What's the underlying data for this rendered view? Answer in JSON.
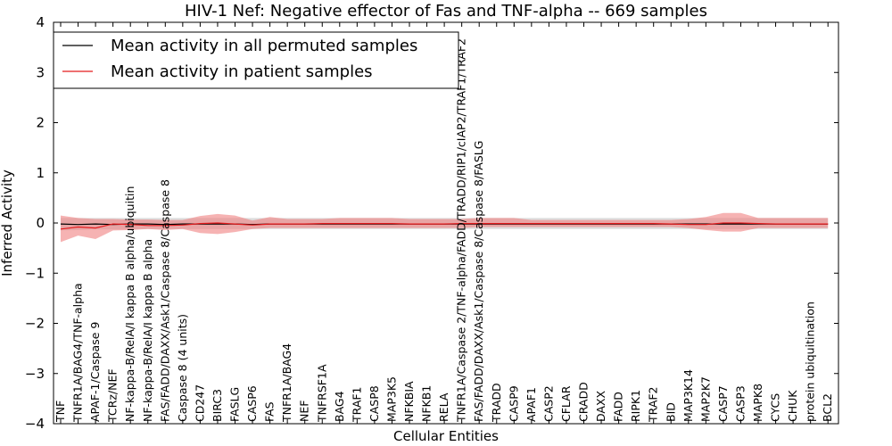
{
  "chart_data": {
    "type": "line",
    "title": "HIV-1 Nef: Negative effector of Fas and TNF-alpha -- 669 samples",
    "xlabel": "Cellular Entities",
    "ylabel": "Inferred Activity",
    "ylim": [
      -4,
      4
    ],
    "yticks": [
      -4,
      -3,
      -2,
      -1,
      0,
      1,
      2,
      3,
      4
    ],
    "ytick_labels": [
      "−4",
      "−3",
      "−2",
      "−1",
      "0",
      "1",
      "2",
      "3",
      "4"
    ],
    "grid": false,
    "legend_position": "top-left",
    "categories": [
      "TNF",
      "TNFR1A/BAG4/TNF-alpha",
      "APAF-1/Caspase 9",
      "TCRz/NEF",
      "NF-kappa-B/RelA/I kappa B alpha/ubiquitin",
      "NF-kappa-B/RelA/I kappa B alpha",
      "FAS/FADD/DAXX/Ask1/Caspase 8/Caspase 8",
      "Caspase 8 (4 units)",
      "CD247",
      "BIRC3",
      "FASLG",
      "CASP6",
      "FAS",
      "TNFR1A/BAG4",
      "NEF",
      "TNFRSF1A",
      "BAG4",
      "TRAF1",
      "CASP8",
      "MAP3K5",
      "NFKBIA",
      "NFKB1",
      "RELA",
      "TNFR1A/Caspase 2/TNF-alpha/FADD/TRADD/RIP1/cIAP2/TRAF1/TRAF2",
      "FAS/FADD/DAXX/Ask1/Caspase 8/Caspase 8/FASLG",
      "TRADD",
      "CASP9",
      "APAF1",
      "CASP2",
      "CFLAR",
      "CRADD",
      "DAXX",
      "FADD",
      "RIPK1",
      "TRAF2",
      "BID",
      "MAP3K14",
      "MAP2K7",
      "CASP7",
      "CASP3",
      "MAPK8",
      "CYCS",
      "CHUK",
      "protein ubiquitination",
      "BCL2"
    ],
    "series": [
      {
        "name": "Mean activity in all permuted samples",
        "color": "#000000",
        "values": [
          -0.02,
          -0.03,
          -0.02,
          -0.03,
          -0.02,
          -0.02,
          -0.03,
          -0.02,
          -0.02,
          -0.02,
          -0.02,
          -0.03,
          -0.02,
          -0.02,
          -0.02,
          -0.02,
          -0.02,
          -0.02,
          -0.02,
          -0.02,
          -0.02,
          -0.02,
          -0.02,
          -0.02,
          -0.02,
          -0.02,
          -0.02,
          -0.02,
          -0.02,
          -0.02,
          -0.02,
          -0.02,
          -0.02,
          -0.02,
          -0.02,
          -0.02,
          -0.02,
          -0.02,
          -0.02,
          -0.02,
          -0.02,
          -0.02,
          -0.02,
          -0.02,
          -0.02
        ],
        "band_low": [
          -0.15,
          -0.14,
          -0.13,
          -0.13,
          -0.13,
          -0.12,
          -0.12,
          -0.12,
          -0.12,
          -0.12,
          -0.12,
          -0.12,
          -0.12,
          -0.12,
          -0.12,
          -0.12,
          -0.12,
          -0.12,
          -0.12,
          -0.12,
          -0.12,
          -0.12,
          -0.12,
          -0.12,
          -0.12,
          -0.12,
          -0.12,
          -0.12,
          -0.12,
          -0.12,
          -0.12,
          -0.12,
          -0.12,
          -0.12,
          -0.12,
          -0.12,
          -0.12,
          -0.12,
          -0.12,
          -0.12,
          -0.12,
          -0.12,
          -0.12,
          -0.12,
          -0.12
        ],
        "band_high": [
          0.1,
          0.1,
          0.1,
          0.1,
          0.1,
          0.1,
          0.1,
          0.1,
          0.1,
          0.1,
          0.1,
          0.1,
          0.1,
          0.1,
          0.1,
          0.1,
          0.1,
          0.1,
          0.1,
          0.1,
          0.1,
          0.1,
          0.1,
          0.1,
          0.1,
          0.1,
          0.1,
          0.1,
          0.1,
          0.1,
          0.1,
          0.1,
          0.1,
          0.1,
          0.1,
          0.1,
          0.1,
          0.1,
          0.1,
          0.1,
          0.1,
          0.1,
          0.1,
          0.1,
          0.1
        ]
      },
      {
        "name": "Mean activity in patient samples",
        "color": "#e31a1c",
        "band_color": "#f08080",
        "values": [
          -0.12,
          -0.08,
          -0.1,
          -0.02,
          -0.03,
          -0.05,
          -0.05,
          -0.04,
          -0.01,
          0.0,
          -0.02,
          -0.04,
          -0.02,
          -0.02,
          -0.02,
          -0.01,
          -0.01,
          -0.01,
          -0.01,
          -0.01,
          -0.02,
          -0.02,
          -0.02,
          -0.01,
          -0.01,
          -0.01,
          -0.01,
          -0.01,
          -0.01,
          -0.01,
          -0.01,
          -0.01,
          -0.01,
          -0.01,
          -0.01,
          -0.02,
          -0.03,
          -0.03,
          0.0,
          0.0,
          -0.01,
          -0.02,
          -0.02,
          -0.02,
          -0.02
        ],
        "band_low": [
          -0.38,
          -0.25,
          -0.32,
          -0.15,
          -0.14,
          -0.12,
          -0.14,
          -0.12,
          -0.2,
          -0.22,
          -0.18,
          -0.12,
          -0.1,
          -0.1,
          -0.1,
          -0.1,
          -0.1,
          -0.1,
          -0.1,
          -0.1,
          -0.1,
          -0.1,
          -0.1,
          -0.1,
          -0.08,
          -0.08,
          -0.08,
          -0.08,
          -0.08,
          -0.08,
          -0.08,
          -0.08,
          -0.08,
          -0.08,
          -0.08,
          -0.08,
          -0.1,
          -0.14,
          -0.17,
          -0.17,
          -0.1,
          -0.1,
          -0.1,
          -0.1,
          -0.1
        ],
        "band_high": [
          0.15,
          0.1,
          0.08,
          0.08,
          0.07,
          0.07,
          0.06,
          0.06,
          0.14,
          0.18,
          0.15,
          0.05,
          0.12,
          0.08,
          0.08,
          0.08,
          0.1,
          0.1,
          0.1,
          0.1,
          0.08,
          0.08,
          0.08,
          0.08,
          0.1,
          0.1,
          0.1,
          0.06,
          0.06,
          0.06,
          0.06,
          0.06,
          0.06,
          0.06,
          0.06,
          0.06,
          0.08,
          0.12,
          0.2,
          0.2,
          0.1,
          0.1,
          0.1,
          0.1,
          0.1
        ]
      }
    ]
  }
}
